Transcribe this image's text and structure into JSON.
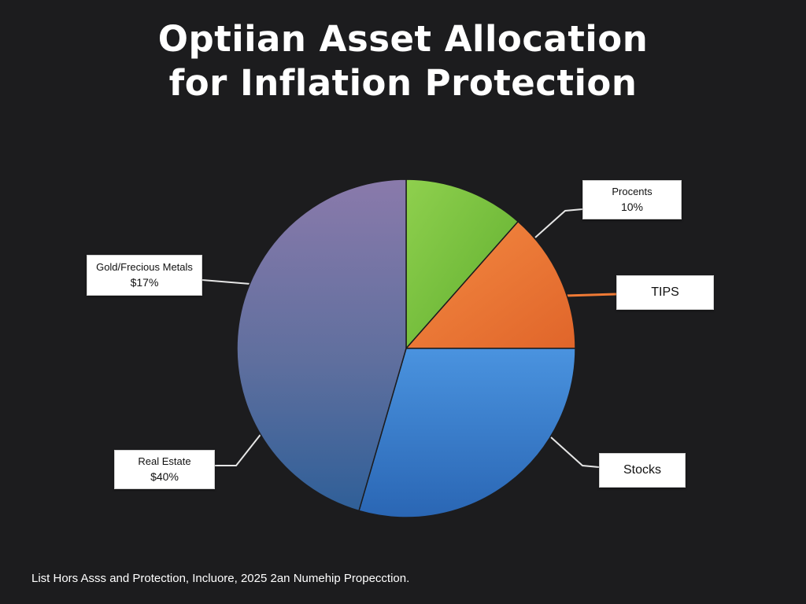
{
  "chart_data": {
    "type": "pie",
    "title_lines": [
      "Optiian Asset Allocation",
      "for Inflation Protection"
    ],
    "slices": [
      {
        "id": "green",
        "label": "",
        "value": 11.5,
        "color": "#7fc843"
      },
      {
        "id": "orange",
        "label": "",
        "value": 13.5,
        "color": "#f07a35"
      },
      {
        "id": "blue",
        "label": "",
        "value": 29.5,
        "color": "#3d87d4"
      },
      {
        "id": "purple",
        "label": "",
        "value": 45.5,
        "color": "#8a7aab"
      }
    ],
    "callouts": [
      {
        "id": "gold",
        "name": "Gold/Frecious Metals",
        "value": "$17%"
      },
      {
        "id": "procents",
        "name": "Procents",
        "value": "10%"
      },
      {
        "id": "tips",
        "name": "TIPS",
        "value": ""
      },
      {
        "id": "real-estate",
        "name": "Real Estate",
        "value": "$40%"
      },
      {
        "id": "stocks",
        "name": "Stocks",
        "value": ""
      }
    ],
    "footnote": "List Hors Asss and Protection, Incluore, 2025 2an Numehip Propecction."
  }
}
